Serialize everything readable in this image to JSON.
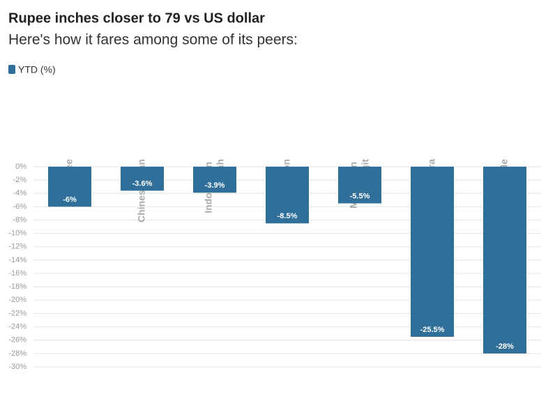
{
  "chart_data": {
    "type": "bar",
    "title": "Rupee inches closer to 79 vs US dollar",
    "subtitle": "Here's how it fares among some of its peers:",
    "series": [
      {
        "name": "YTD (%)",
        "color": "#2f6f99",
        "values": [
          -6,
          -3.6,
          -3.9,
          -8.5,
          -5.5,
          -25.5,
          -28
        ],
        "value_labels": [
          "-6%",
          "-3.6%",
          "-3.9%",
          "-8.5%",
          "-5.5%",
          "-25.5%",
          "-28%"
        ]
      }
    ],
    "categories": [
      "Rupee",
      "Chinese yuan",
      "Indonesian rupiah",
      "Korean won",
      "Malaysian ringgit",
      "Turkish lira",
      "Russian ruble"
    ],
    "ylim": [
      0,
      -30
    ],
    "yticks": [
      {
        "value": 0,
        "label": "0%"
      },
      {
        "value": -2,
        "label": "-2%"
      },
      {
        "value": -4,
        "label": "-4%"
      },
      {
        "value": -6,
        "label": "-6%"
      },
      {
        "value": -8,
        "label": "-8%"
      },
      {
        "value": -10,
        "label": "-10%"
      },
      {
        "value": -12,
        "label": "-12%"
      },
      {
        "value": -14,
        "label": "-14%"
      },
      {
        "value": -16,
        "label": "-16%"
      },
      {
        "value": -18,
        "label": "-18%"
      },
      {
        "value": -20,
        "label": "-20%"
      },
      {
        "value": -22,
        "label": "-22%"
      },
      {
        "value": -24,
        "label": "-24%"
      },
      {
        "value": -26,
        "label": "-26%"
      },
      {
        "value": -28,
        "label": "-28%"
      },
      {
        "value": -30,
        "label": "-30%"
      }
    ],
    "grid": true
  }
}
